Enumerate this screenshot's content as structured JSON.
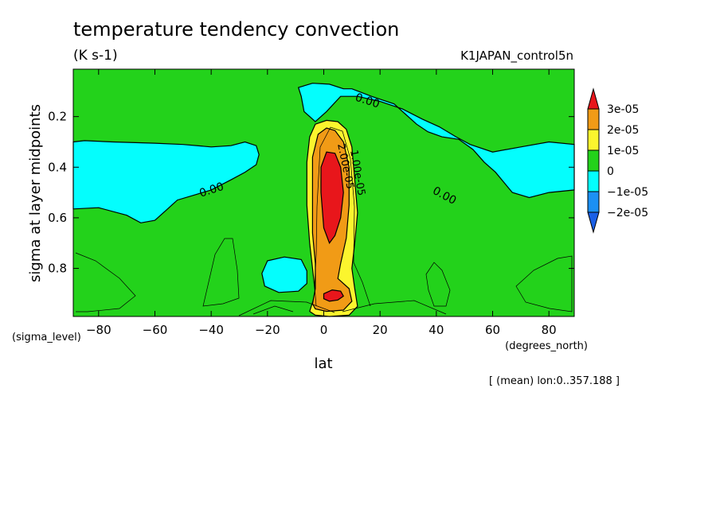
{
  "chart_data": {
    "type": "contour",
    "title": "temperature tendency convection",
    "units": "(K s-1)",
    "dataset": "K1JAPAN_control5n",
    "xlabel": "lat",
    "x_axis_units": "(degrees_north)",
    "ylabel": "sigma at layer midpoints",
    "y_axis_units": "(sigma_level)",
    "footnote": "[ (mean) lon:0..357.188 ]",
    "xlim": [
      -89,
      89
    ],
    "ylim": [
      0.0125,
      0.99
    ],
    "y_inverted": true,
    "x_ticks": [
      -80,
      -60,
      -40,
      -20,
      0,
      20,
      40,
      60,
      80
    ],
    "x_tick_labels": [
      "−80",
      "−60",
      "−40",
      "−20",
      "0",
      "20",
      "40",
      "60",
      "80"
    ],
    "y_ticks": [
      0.2,
      0.4,
      0.6,
      0.8
    ],
    "y_tick_labels": [
      "0.2",
      "0.4",
      "0.6",
      "0.8"
    ],
    "contour_labels": [
      "0.00",
      "0.00",
      "0.00",
      "1.00e-05",
      "2.00e-05"
    ],
    "legend": {
      "placement": "right",
      "labels": [
        "3e-05",
        "2e-05",
        "1e-05",
        "0",
        "−1e-05",
        "−2e-05"
      ],
      "colors": [
        "#e8161b",
        "#f19b16",
        "#fbf52e",
        "#23d21b",
        "#04fefd",
        "#1c90f3",
        "#1a5fe6"
      ]
    },
    "regions": [
      {
        "level": "−1e-05..0",
        "color": "#04fefd",
        "points": [
          [
            -89,
            0.3
          ],
          [
            -85,
            0.295
          ],
          [
            -75,
            0.3
          ],
          [
            -60,
            0.305
          ],
          [
            -50,
            0.31
          ],
          [
            -40,
            0.32
          ],
          [
            -33,
            0.315
          ],
          [
            -28,
            0.3
          ],
          [
            -24,
            0.315
          ],
          [
            -23,
            0.35
          ],
          [
            -24,
            0.39
          ],
          [
            -28,
            0.42
          ],
          [
            -33,
            0.45
          ],
          [
            -40,
            0.49
          ],
          [
            -46,
            0.51
          ],
          [
            -52,
            0.53
          ],
          [
            -56,
            0.57
          ],
          [
            -60,
            0.61
          ],
          [
            -65,
            0.62
          ],
          [
            -70,
            0.59
          ],
          [
            -80,
            0.56
          ],
          [
            -89,
            0.565
          ]
        ]
      },
      {
        "level": "−1e-05..0",
        "color": "#04fefd",
        "points": [
          [
            -9,
            0.085
          ],
          [
            -4,
            0.068
          ],
          [
            2,
            0.072
          ],
          [
            7,
            0.09
          ],
          [
            10,
            0.09
          ],
          [
            17,
            0.12
          ],
          [
            25,
            0.15
          ],
          [
            29,
            0.19
          ],
          [
            33,
            0.23
          ],
          [
            37,
            0.26
          ],
          [
            42,
            0.28
          ],
          [
            48,
            0.29
          ],
          [
            53,
            0.33
          ],
          [
            57,
            0.38
          ],
          [
            61,
            0.42
          ],
          [
            64,
            0.46
          ],
          [
            67,
            0.5
          ],
          [
            73,
            0.52
          ],
          [
            80,
            0.5
          ],
          [
            89,
            0.49
          ],
          [
            89,
            0.31
          ],
          [
            80,
            0.3
          ],
          [
            70,
            0.32
          ],
          [
            60,
            0.34
          ],
          [
            52,
            0.31
          ],
          [
            47,
            0.28
          ],
          [
            41,
            0.24
          ],
          [
            35,
            0.21
          ],
          [
            28,
            0.17
          ],
          [
            20,
            0.14
          ],
          [
            12,
            0.12
          ],
          [
            6,
            0.12
          ],
          [
            1,
            0.18
          ],
          [
            -3,
            0.22
          ],
          [
            -7,
            0.18
          ],
          [
            -8,
            0.12
          ]
        ]
      },
      {
        "level": "−1e-05..0",
        "color": "#04fefd",
        "points": [
          [
            -20,
            0.77
          ],
          [
            -14,
            0.755
          ],
          [
            -8,
            0.765
          ],
          [
            -6,
            0.81
          ],
          [
            -6,
            0.86
          ],
          [
            -9,
            0.89
          ],
          [
            -16,
            0.895
          ],
          [
            -21,
            0.87
          ],
          [
            -22,
            0.82
          ]
        ]
      },
      {
        "level": "0..1e-05",
        "color": "#fbf52e",
        "points": [
          [
            -5,
            0.97
          ],
          [
            -3,
            0.9
          ],
          [
            -4,
            0.8
          ],
          [
            -5,
            0.7
          ],
          [
            -6,
            0.55
          ],
          [
            -6,
            0.38
          ],
          [
            -5,
            0.28
          ],
          [
            -3,
            0.23
          ],
          [
            1,
            0.215
          ],
          [
            5,
            0.22
          ],
          [
            8,
            0.25
          ],
          [
            10,
            0.32
          ],
          [
            11,
            0.45
          ],
          [
            12,
            0.58
          ],
          [
            11,
            0.7
          ],
          [
            10,
            0.8
          ],
          [
            11,
            0.88
          ],
          [
            12,
            0.95
          ],
          [
            9,
            0.985
          ],
          [
            2,
            0.99
          ],
          [
            -3,
            0.985
          ]
        ]
      },
      {
        "level": "1e-05..2e-05",
        "color": "#f19b16",
        "points": [
          [
            -4,
            0.94
          ],
          [
            -3,
            0.88
          ],
          [
            -3,
            0.78
          ],
          [
            -4,
            0.66
          ],
          [
            -4,
            0.5
          ],
          [
            -4,
            0.36
          ],
          [
            -2,
            0.27
          ],
          [
            1,
            0.245
          ],
          [
            4,
            0.255
          ],
          [
            7,
            0.3
          ],
          [
            9,
            0.4
          ],
          [
            9,
            0.55
          ],
          [
            8,
            0.68
          ],
          [
            6,
            0.78
          ],
          [
            5,
            0.84
          ],
          [
            9,
            0.88
          ],
          [
            10,
            0.93
          ],
          [
            7,
            0.965
          ],
          [
            1,
            0.97
          ],
          [
            -3,
            0.96
          ]
        ]
      },
      {
        "level": "2e-05..3e-05",
        "color": "#e8161b",
        "points": [
          [
            -1,
            0.5
          ],
          [
            -1,
            0.4
          ],
          [
            1,
            0.34
          ],
          [
            4,
            0.345
          ],
          [
            6,
            0.4
          ],
          [
            7,
            0.5
          ],
          [
            6,
            0.6
          ],
          [
            4,
            0.67
          ],
          [
            2,
            0.7
          ],
          [
            0,
            0.64
          ]
        ]
      },
      {
        "level": "2e-05..3e-05",
        "color": "#e8161b",
        "points": [
          [
            0,
            0.9
          ],
          [
            3,
            0.885
          ],
          [
            6,
            0.89
          ],
          [
            7,
            0.91
          ],
          [
            5,
            0.925
          ],
          [
            2,
            0.93
          ],
          [
            0,
            0.92
          ]
        ]
      }
    ]
  }
}
